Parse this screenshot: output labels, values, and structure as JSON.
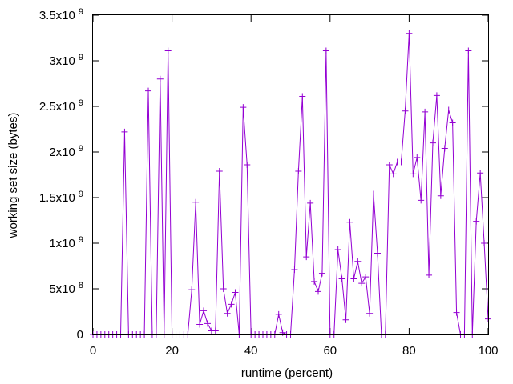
{
  "chart_data": {
    "type": "line",
    "xlabel": "runtime (percent)",
    "ylabel": "working set size (bytes)",
    "xlim": [
      0,
      100
    ],
    "ylim": [
      0,
      3500000000
    ],
    "x_ticks": [
      {
        "value": 0,
        "label": "0"
      },
      {
        "value": 20,
        "label": "20"
      },
      {
        "value": 40,
        "label": "40"
      },
      {
        "value": 60,
        "label": "60"
      },
      {
        "value": 80,
        "label": "80"
      },
      {
        "value": 100,
        "label": "100"
      }
    ],
    "y_ticks": [
      {
        "value": 0,
        "mantissa": "0",
        "exp": ""
      },
      {
        "value": 500000000,
        "mantissa": "5x10",
        "exp": "8"
      },
      {
        "value": 1000000000,
        "mantissa": "1x10",
        "exp": "9"
      },
      {
        "value": 1500000000,
        "mantissa": "1.5x10",
        "exp": "9"
      },
      {
        "value": 2000000000,
        "mantissa": "2x10",
        "exp": "9"
      },
      {
        "value": 2500000000,
        "mantissa": "2.5x10",
        "exp": "9"
      },
      {
        "value": 3000000000,
        "mantissa": "3x10",
        "exp": "9"
      },
      {
        "value": 3500000000,
        "mantissa": "3.5x10",
        "exp": "9"
      }
    ],
    "grid": false,
    "legend": "none",
    "series": [
      {
        "color": "#9400d3",
        "marker": "plus",
        "x": [
          0,
          1,
          2,
          3,
          4,
          5,
          6,
          7,
          8,
          9,
          10,
          11,
          12,
          13,
          14,
          15,
          16,
          17,
          18,
          19,
          20,
          21,
          22,
          23,
          24,
          25,
          26,
          27,
          28,
          29,
          30,
          31,
          32,
          33,
          34,
          35,
          36,
          37,
          38,
          39,
          40,
          41,
          42,
          43,
          44,
          45,
          46,
          47,
          48,
          49,
          50,
          51,
          52,
          53,
          54,
          55,
          56,
          57,
          58,
          59,
          60,
          61,
          62,
          63,
          64,
          65,
          66,
          67,
          68,
          69,
          70,
          71,
          72,
          73,
          74,
          75,
          76,
          77,
          78,
          79,
          80,
          81,
          82,
          83,
          84,
          85,
          86,
          87,
          88,
          89,
          90,
          91,
          92,
          93,
          94,
          95,
          96,
          97,
          98,
          99,
          100
        ],
        "y": [
          0,
          0,
          0,
          0,
          0,
          0,
          0,
          0,
          2220000000,
          0,
          0,
          0,
          0,
          0,
          2670000000,
          0,
          0,
          2800000000,
          0,
          3110000000,
          0,
          0,
          0,
          0,
          0,
          490000000,
          1450000000,
          110000000,
          260000000,
          120000000,
          40000000,
          40000000,
          1790000000,
          500000000,
          230000000,
          330000000,
          460000000,
          0,
          2490000000,
          1860000000,
          0,
          0,
          0,
          0,
          0,
          0,
          0,
          220000000,
          20000000,
          0,
          0,
          710000000,
          1790000000,
          2610000000,
          850000000,
          1440000000,
          580000000,
          470000000,
          670000000,
          3110000000,
          0,
          0,
          930000000,
          610000000,
          160000000,
          1230000000,
          610000000,
          800000000,
          560000000,
          630000000,
          230000000,
          1540000000,
          890000000,
          0,
          0,
          1860000000,
          1760000000,
          1890000000,
          1890000000,
          2450000000,
          3300000000,
          1760000000,
          1940000000,
          1470000000,
          2440000000,
          650000000,
          2100000000,
          2620000000,
          1520000000,
          2040000000,
          2460000000,
          2320000000,
          240000000,
          0,
          0,
          3110000000,
          0,
          1240000000,
          1770000000,
          1000000000,
          170000000
        ]
      }
    ]
  }
}
